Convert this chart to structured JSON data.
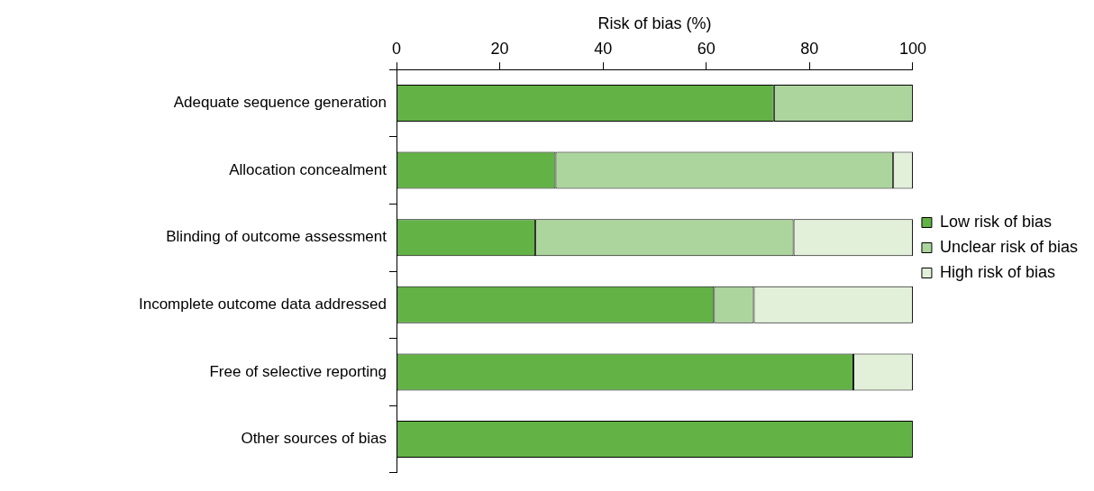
{
  "chart_data": {
    "type": "bar",
    "orientation": "horizontal",
    "stacked": true,
    "xlabel": "Risk of bias (%)",
    "categories": [
      "Adequate sequence generation",
      "Allocation concealment",
      "Blinding of outcome assessment",
      "Incomplete outcome data addressed",
      "Free of selective reporting",
      "Other sources of bias"
    ],
    "series": [
      {
        "name": "Low risk of bias",
        "color": "#62b246",
        "values": [
          73.1,
          30.8,
          26.9,
          61.5,
          88.5,
          100
        ]
      },
      {
        "name": "Unclear risk of bias",
        "color": "#acd59d",
        "values": [
          26.9,
          65.4,
          50.0,
          7.7,
          0,
          0
        ]
      },
      {
        "name": "High risk of bias",
        "color": "#e2f0da",
        "values": [
          0,
          3.8,
          23.1,
          30.8,
          11.5,
          0
        ]
      }
    ],
    "xlim": [
      0,
      100
    ],
    "xticks": [
      0,
      20,
      40,
      60,
      80,
      100
    ],
    "grid": false,
    "legend": "right"
  }
}
